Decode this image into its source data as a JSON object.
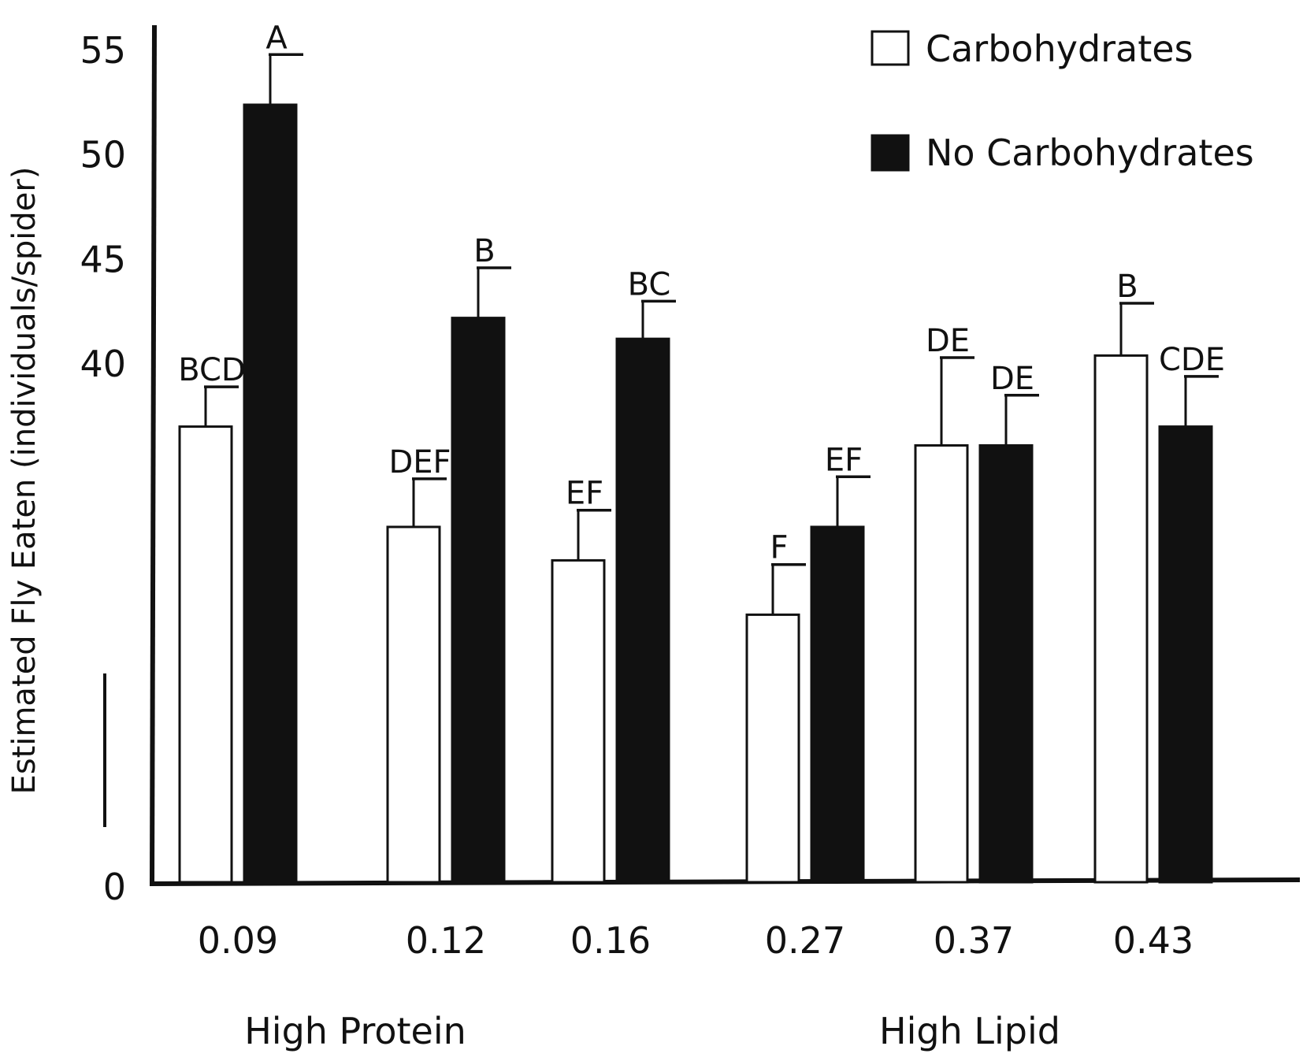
{
  "chart_data": {
    "type": "bar",
    "title": "",
    "xlabel": "",
    "ylabel": "Estimated Fly Eaten (individuals/spider)",
    "yticks": [
      0,
      40,
      45,
      50,
      55
    ],
    "ylim": [
      0,
      55
    ],
    "axis_break": true,
    "categories": [
      "0.09",
      "0.12",
      "0.16",
      "0.27",
      "0.37",
      "0.43"
    ],
    "groups": [
      {
        "label": "High Protein"
      },
      {
        "label": "High Lipid"
      }
    ],
    "legend_position": "top-right",
    "series": [
      {
        "name": "Carbohydrates",
        "color": "#ffffff",
        "values": [
          37.0,
          32.2,
          30.6,
          28.0,
          36.1,
          40.4
        ],
        "errors": [
          1.9,
          2.3,
          2.4,
          2.4,
          4.2,
          2.5
        ],
        "letters": [
          "BCD",
          "DEF",
          "EF",
          "F",
          "DE",
          "B"
        ]
      },
      {
        "name": "No Carbohydrates",
        "color": "#111111",
        "values": [
          52.4,
          42.2,
          41.2,
          32.2,
          36.1,
          37.0
        ],
        "errors": [
          2.4,
          2.4,
          1.8,
          2.4,
          2.4,
          2.4
        ],
        "letters": [
          "A",
          "B",
          "BC",
          "EF",
          "DE",
          "CDE"
        ]
      }
    ]
  }
}
